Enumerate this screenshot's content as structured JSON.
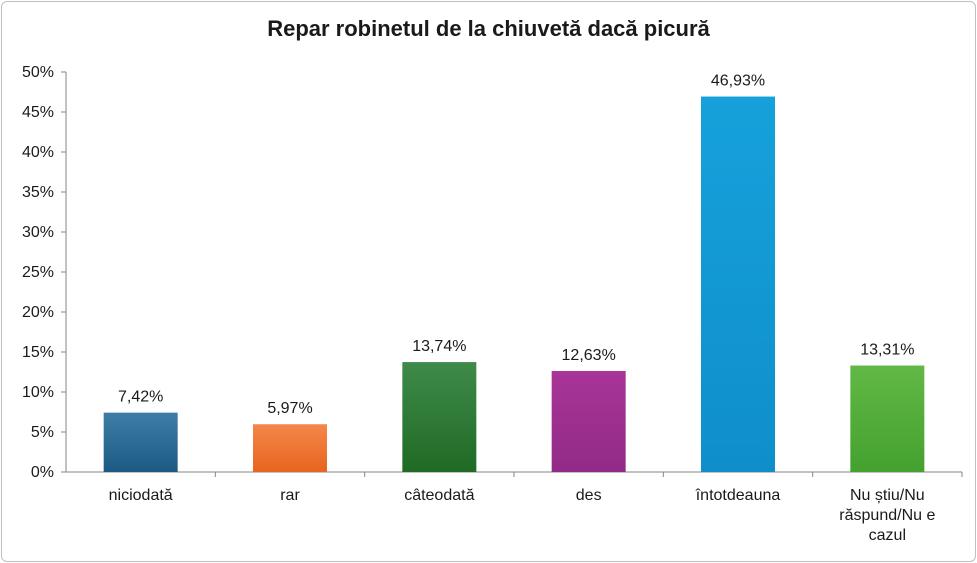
{
  "chart_data": {
    "type": "bar",
    "title": "Repar robinetul de la chiuvetă dacă picură",
    "xlabel": "",
    "ylabel": "",
    "ylim": [
      0,
      50
    ],
    "yticks": [
      "0%",
      "5%",
      "10%",
      "15%",
      "20%",
      "25%",
      "30%",
      "35%",
      "40%",
      "45%",
      "50%"
    ],
    "grid": false,
    "legend": "none",
    "categories": [
      [
        "niciodată"
      ],
      [
        "rar"
      ],
      [
        "câteodată"
      ],
      [
        "des"
      ],
      [
        "întotdeauna"
      ],
      [
        "Nu știu/Nu",
        "răspund/Nu e",
        "cazul"
      ]
    ],
    "values": [
      7.42,
      5.97,
      13.74,
      12.63,
      46.93,
      13.31
    ],
    "data_labels": [
      "7,42%",
      "5,97%",
      "13,74%",
      "12,63%",
      "46,93%",
      "13,31%"
    ],
    "colors": [
      [
        "#3e7ea6",
        "#1c5a84"
      ],
      [
        "#f4874a",
        "#e8641f"
      ],
      [
        "#3f8a4a",
        "#1f6b24"
      ],
      [
        "#a83598",
        "#932a87"
      ],
      [
        "#16a1db",
        "#0f8ecb"
      ],
      [
        "#62b845",
        "#44a12f"
      ]
    ]
  }
}
